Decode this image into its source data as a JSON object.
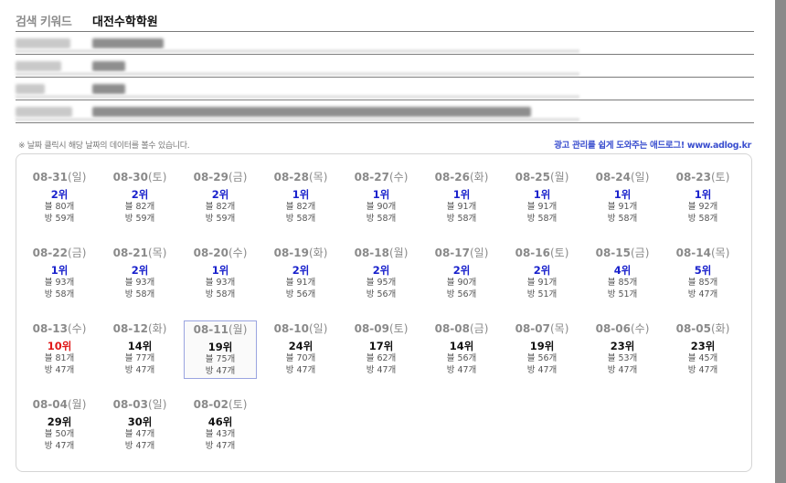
{
  "keyword": {
    "label": "검색 키워드",
    "value": "대전수학학원"
  },
  "notice": "※ 날짜 클릭시 해당 날짜의 데이터를 볼수 있습니다.",
  "ad_link": "광고 관리를 쉽게 도와주는 애드로그! www.adlog.kr",
  "colors": {
    "rank_blue": "#1a22cc",
    "rank_red": "#e01818",
    "rank_black": "#111111",
    "selected_border": "#9aa4e0"
  },
  "days": [
    {
      "date": "08-31",
      "dow": "(일)",
      "rank": "2위",
      "blog": "블 80개",
      "bang": "방 59개",
      "color": "blue"
    },
    {
      "date": "08-30",
      "dow": "(토)",
      "rank": "2위",
      "blog": "블 82개",
      "bang": "방 59개",
      "color": "blue"
    },
    {
      "date": "08-29",
      "dow": "(금)",
      "rank": "2위",
      "blog": "블 82개",
      "bang": "방 59개",
      "color": "blue"
    },
    {
      "date": "08-28",
      "dow": "(목)",
      "rank": "1위",
      "blog": "블 82개",
      "bang": "방 58개",
      "color": "blue"
    },
    {
      "date": "08-27",
      "dow": "(수)",
      "rank": "1위",
      "blog": "블 90개",
      "bang": "방 58개",
      "color": "blue"
    },
    {
      "date": "08-26",
      "dow": "(화)",
      "rank": "1위",
      "blog": "블 91개",
      "bang": "방 58개",
      "color": "blue"
    },
    {
      "date": "08-25",
      "dow": "(월)",
      "rank": "1위",
      "blog": "블 91개",
      "bang": "방 58개",
      "color": "blue"
    },
    {
      "date": "08-24",
      "dow": "(일)",
      "rank": "1위",
      "blog": "블 91개",
      "bang": "방 58개",
      "color": "blue"
    },
    {
      "date": "08-23",
      "dow": "(토)",
      "rank": "1위",
      "blog": "블 92개",
      "bang": "방 58개",
      "color": "blue"
    },
    {
      "date": "08-22",
      "dow": "(금)",
      "rank": "1위",
      "blog": "블 93개",
      "bang": "방 58개",
      "color": "blue"
    },
    {
      "date": "08-21",
      "dow": "(목)",
      "rank": "2위",
      "blog": "블 93개",
      "bang": "방 58개",
      "color": "blue"
    },
    {
      "date": "08-20",
      "dow": "(수)",
      "rank": "1위",
      "blog": "블 93개",
      "bang": "방 58개",
      "color": "blue"
    },
    {
      "date": "08-19",
      "dow": "(화)",
      "rank": "2위",
      "blog": "블 91개",
      "bang": "방 56개",
      "color": "blue"
    },
    {
      "date": "08-18",
      "dow": "(월)",
      "rank": "2위",
      "blog": "블 95개",
      "bang": "방 56개",
      "color": "blue"
    },
    {
      "date": "08-17",
      "dow": "(일)",
      "rank": "2위",
      "blog": "블 90개",
      "bang": "방 56개",
      "color": "blue"
    },
    {
      "date": "08-16",
      "dow": "(토)",
      "rank": "2위",
      "blog": "블 91개",
      "bang": "방 51개",
      "color": "blue"
    },
    {
      "date": "08-15",
      "dow": "(금)",
      "rank": "4위",
      "blog": "블 85개",
      "bang": "방 51개",
      "color": "blue"
    },
    {
      "date": "08-14",
      "dow": "(목)",
      "rank": "5위",
      "blog": "블 85개",
      "bang": "방 47개",
      "color": "blue"
    },
    {
      "date": "08-13",
      "dow": "(수)",
      "rank": "10위",
      "blog": "블 81개",
      "bang": "방 47개",
      "color": "red"
    },
    {
      "date": "08-12",
      "dow": "(화)",
      "rank": "14위",
      "blog": "블 77개",
      "bang": "방 47개",
      "color": "black"
    },
    {
      "date": "08-11",
      "dow": "(월)",
      "rank": "19위",
      "blog": "블 75개",
      "bang": "방 47개",
      "color": "black",
      "selected": true
    },
    {
      "date": "08-10",
      "dow": "(일)",
      "rank": "24위",
      "blog": "블 70개",
      "bang": "방 47개",
      "color": "black"
    },
    {
      "date": "08-09",
      "dow": "(토)",
      "rank": "17위",
      "blog": "블 62개",
      "bang": "방 47개",
      "color": "black"
    },
    {
      "date": "08-08",
      "dow": "(금)",
      "rank": "14위",
      "blog": "블 56개",
      "bang": "방 47개",
      "color": "black"
    },
    {
      "date": "08-07",
      "dow": "(목)",
      "rank": "19위",
      "blog": "블 56개",
      "bang": "방 47개",
      "color": "black"
    },
    {
      "date": "08-06",
      "dow": "(수)",
      "rank": "23위",
      "blog": "블 53개",
      "bang": "방 47개",
      "color": "black"
    },
    {
      "date": "08-05",
      "dow": "(화)",
      "rank": "23위",
      "blog": "블 45개",
      "bang": "방 47개",
      "color": "black"
    },
    {
      "date": "08-04",
      "dow": "(월)",
      "rank": "29위",
      "blog": "블 50개",
      "bang": "방 47개",
      "color": "black"
    },
    {
      "date": "08-03",
      "dow": "(일)",
      "rank": "30위",
      "blog": "블 47개",
      "bang": "방 47개",
      "color": "black"
    },
    {
      "date": "08-02",
      "dow": "(토)",
      "rank": "46위",
      "blog": "블 43개",
      "bang": "방 47개",
      "color": "black"
    }
  ]
}
